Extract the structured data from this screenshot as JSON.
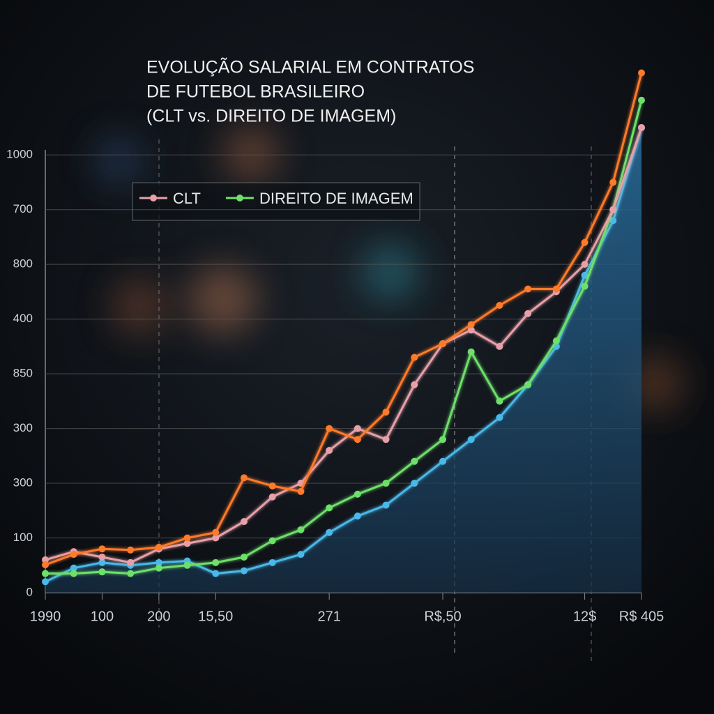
{
  "chart_data": {
    "type": "line",
    "title": [
      "EVOLUÇÃO SALARIAL EM CONTRATOS",
      "DE FUTEBOL BRASILEIRO",
      "(CLT vs. DIREITO DE IMAGEM)"
    ],
    "x": [
      0,
      1,
      2,
      3,
      4,
      5,
      6,
      7,
      8,
      9,
      10,
      11,
      12,
      13,
      14,
      15,
      16,
      17,
      18,
      19,
      20,
      21
    ],
    "xlim": [
      0,
      21
    ],
    "xticks": [
      {
        "value": 0,
        "label": "1990"
      },
      {
        "value": 2,
        "label": "100"
      },
      {
        "value": 4,
        "label": "200"
      },
      {
        "value": 6,
        "label": "15,50"
      },
      {
        "value": 10,
        "label": "271"
      },
      {
        "value": 14,
        "label": "R$,50"
      },
      {
        "value": 19,
        "label": "12$"
      },
      {
        "value": 21,
        "label": "R$ 405"
      }
    ],
    "ylim": [
      0,
      1050
    ],
    "yticks": [
      0,
      100,
      {
        "value": 200,
        "label": "300"
      },
      300,
      {
        "value": 400,
        "label": "850"
      },
      {
        "value": 500,
        "label": "400"
      },
      {
        "value": 600,
        "label": "800"
      },
      700,
      {
        "value": 800,
        "label": "1000"
      }
    ],
    "grid": true,
    "legend": "top-left",
    "series": [
      {
        "color": "#4ab8e8",
        "area": true,
        "values": [
          20,
          45,
          55,
          50,
          55,
          58,
          35,
          40,
          55,
          70,
          110,
          140,
          160,
          200,
          240,
          280,
          320,
          380,
          450,
          580,
          680,
          850
        ]
      },
      {
        "name": "DIREITO DE IMAGEM",
        "color": "#6ee06a",
        "values": [
          35,
          35,
          38,
          35,
          45,
          50,
          55,
          65,
          95,
          115,
          155,
          180,
          200,
          240,
          280,
          440,
          350,
          380,
          460,
          560,
          700,
          900
        ]
      },
      {
        "name": "CLT",
        "color": "#e8a0a8",
        "values": [
          60,
          75,
          65,
          55,
          80,
          90,
          100,
          130,
          175,
          200,
          260,
          300,
          280,
          380,
          455,
          480,
          450,
          510,
          550,
          600,
          700,
          850
        ]
      },
      {
        "color": "#ff7a2a",
        "values": [
          51,
          70,
          80,
          78,
          83,
          100,
          110,
          210,
          195,
          185,
          300,
          280,
          330,
          430,
          455,
          490,
          525,
          555,
          555,
          640,
          750,
          950
        ]
      }
    ]
  }
}
